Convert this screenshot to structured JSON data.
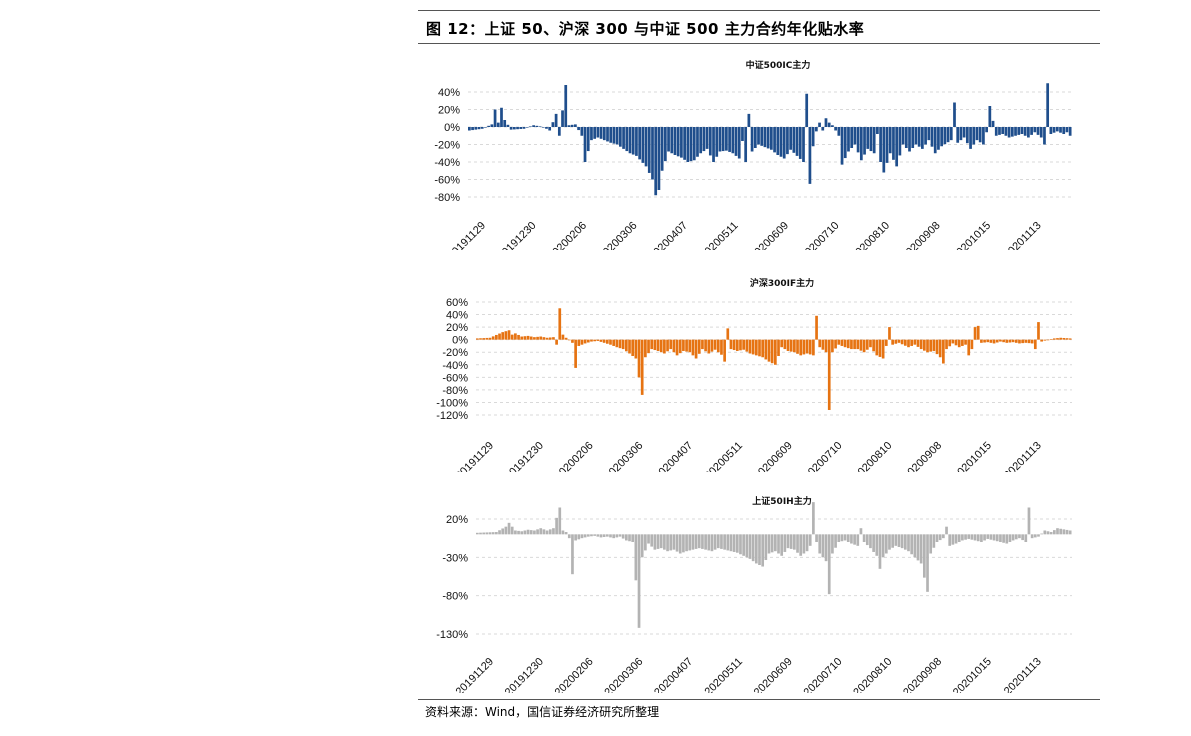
{
  "figure": {
    "title": "图 12：上证 50、沪深 300 与中证 500 主力合约年化贴水率",
    "source": "资料来源：Wind，国信证券经济研究所整理"
  },
  "chart_data": [
    {
      "type": "bar",
      "title": "中证500IC主力",
      "color": "#1f4e8c",
      "x_tick_labels": [
        "20191129",
        "20191230",
        "20200206",
        "20200306",
        "20200407",
        "20200511",
        "20200609",
        "20200710",
        "20200810",
        "20200908",
        "20201015",
        "20201113"
      ],
      "y_tick_labels": [
        "40%",
        "20%",
        "0%",
        "-20%",
        "-40%",
        "-60%",
        "-80%"
      ],
      "ylim": [
        -80,
        50
      ],
      "grid": true,
      "series_anchors": [
        [
          0,
          -4
        ],
        [
          4,
          -2
        ],
        [
          7,
          3
        ],
        [
          8,
          20
        ],
        [
          9,
          5
        ],
        [
          10,
          22
        ],
        [
          11,
          8
        ],
        [
          13,
          -3
        ],
        [
          17,
          -2
        ],
        [
          20,
          2
        ],
        [
          23,
          0
        ],
        [
          25,
          -4
        ],
        [
          27,
          15
        ],
        [
          28,
          -10
        ],
        [
          30,
          48
        ],
        [
          31,
          2
        ],
        [
          33,
          3
        ],
        [
          35,
          -10
        ],
        [
          36,
          -40
        ],
        [
          38,
          -15
        ],
        [
          40,
          -12
        ],
        [
          44,
          -18
        ],
        [
          46,
          -20
        ],
        [
          48,
          -25
        ],
        [
          50,
          -30
        ],
        [
          52,
          -33
        ],
        [
          55,
          -45
        ],
        [
          57,
          -60
        ],
        [
          58,
          -78
        ],
        [
          59,
          -72
        ],
        [
          60,
          -50
        ],
        [
          62,
          -28
        ],
        [
          64,
          -32
        ],
        [
          66,
          -35
        ],
        [
          68,
          -40
        ],
        [
          70,
          -38
        ],
        [
          72,
          -30
        ],
        [
          74,
          -25
        ],
        [
          76,
          -40
        ],
        [
          78,
          -28
        ],
        [
          80,
          -27
        ],
        [
          82,
          -30
        ],
        [
          84,
          -36
        ],
        [
          85,
          -16
        ],
        [
          86,
          -40
        ],
        [
          87,
          15
        ],
        [
          88,
          -28
        ],
        [
          90,
          -20
        ],
        [
          94,
          -26
        ],
        [
          96,
          -32
        ],
        [
          98,
          -36
        ],
        [
          100,
          -26
        ],
        [
          104,
          -40
        ],
        [
          105,
          38
        ],
        [
          106,
          -65
        ],
        [
          107,
          -22
        ],
        [
          108,
          -5
        ],
        [
          109,
          5
        ],
        [
          110,
          -4
        ],
        [
          111,
          10
        ],
        [
          112,
          5
        ],
        [
          113,
          2
        ],
        [
          115,
          -10
        ],
        [
          116,
          -43
        ],
        [
          118,
          -28
        ],
        [
          120,
          -20
        ],
        [
          122,
          -38
        ],
        [
          124,
          -25
        ],
        [
          126,
          -30
        ],
        [
          127,
          -8
        ],
        [
          128,
          -40
        ],
        [
          129,
          -52
        ],
        [
          131,
          -30
        ],
        [
          133,
          -45
        ],
        [
          135,
          -20
        ],
        [
          137,
          -28
        ],
        [
          139,
          -20
        ],
        [
          141,
          -25
        ],
        [
          143,
          -15
        ],
        [
          145,
          -30
        ],
        [
          147,
          -22
        ],
        [
          150,
          -15
        ],
        [
          151,
          28
        ],
        [
          152,
          -18
        ],
        [
          154,
          -12
        ],
        [
          156,
          -25
        ],
        [
          158,
          -15
        ],
        [
          160,
          -20
        ],
        [
          161,
          -6
        ],
        [
          162,
          24
        ],
        [
          164,
          -10
        ],
        [
          166,
          -8
        ],
        [
          168,
          -12
        ],
        [
          170,
          -10
        ],
        [
          172,
          -8
        ],
        [
          174,
          -12
        ],
        [
          176,
          -6
        ],
        [
          178,
          -12
        ],
        [
          179,
          -20
        ],
        [
          180,
          50
        ],
        [
          181,
          -8
        ],
        [
          183,
          -5
        ],
        [
          185,
          -8
        ],
        [
          186,
          -6
        ],
        [
          187,
          -10
        ]
      ]
    },
    {
      "type": "bar",
      "title": "沪深300IF主力",
      "color": "#e67312",
      "x_tick_labels": [
        "20191129",
        "20191230",
        "20200206",
        "20200306",
        "20200407",
        "20200511",
        "20200609",
        "20200710",
        "20200810",
        "20200908",
        "20201015",
        "20201113"
      ],
      "y_tick_labels": [
        "60%",
        "40%",
        "20%",
        "0%",
        "-20%",
        "-40%",
        "-60%",
        "-80%",
        "-100%",
        "-120%"
      ],
      "ylim": [
        -120,
        60
      ],
      "grid": true,
      "series_anchors": [
        [
          0,
          2
        ],
        [
          4,
          3
        ],
        [
          8,
          12
        ],
        [
          10,
          15
        ],
        [
          11,
          8
        ],
        [
          12,
          10
        ],
        [
          14,
          5
        ],
        [
          16,
          6
        ],
        [
          18,
          4
        ],
        [
          20,
          5
        ],
        [
          22,
          3
        ],
        [
          24,
          4
        ],
        [
          25,
          -8
        ],
        [
          26,
          50
        ],
        [
          27,
          8
        ],
        [
          28,
          3
        ],
        [
          30,
          -5
        ],
        [
          31,
          -45
        ],
        [
          32,
          -10
        ],
        [
          34,
          -6
        ],
        [
          36,
          -3
        ],
        [
          38,
          -2
        ],
        [
          40,
          -5
        ],
        [
          42,
          -8
        ],
        [
          44,
          -12
        ],
        [
          46,
          -15
        ],
        [
          48,
          -22
        ],
        [
          50,
          -30
        ],
        [
          51,
          -60
        ],
        [
          52,
          -88
        ],
        [
          53,
          -28
        ],
        [
          55,
          -15
        ],
        [
          57,
          -18
        ],
        [
          59,
          -22
        ],
        [
          61,
          -15
        ],
        [
          63,
          -25
        ],
        [
          65,
          -18
        ],
        [
          67,
          -20
        ],
        [
          69,
          -30
        ],
        [
          71,
          -15
        ],
        [
          73,
          -22
        ],
        [
          75,
          -16
        ],
        [
          77,
          -24
        ],
        [
          78,
          -35
        ],
        [
          79,
          18
        ],
        [
          80,
          -15
        ],
        [
          82,
          -18
        ],
        [
          84,
          -16
        ],
        [
          86,
          -22
        ],
        [
          88,
          -25
        ],
        [
          90,
          -28
        ],
        [
          92,
          -35
        ],
        [
          94,
          -40
        ],
        [
          96,
          -12
        ],
        [
          98,
          -18
        ],
        [
          100,
          -20
        ],
        [
          102,
          -25
        ],
        [
          104,
          -22
        ],
        [
          106,
          -25
        ],
        [
          107,
          38
        ],
        [
          108,
          -12
        ],
        [
          110,
          -20
        ],
        [
          111,
          -112
        ],
        [
          112,
          -20
        ],
        [
          114,
          -8
        ],
        [
          116,
          -12
        ],
        [
          118,
          -15
        ],
        [
          120,
          -15
        ],
        [
          122,
          -20
        ],
        [
          124,
          -12
        ],
        [
          126,
          -25
        ],
        [
          128,
          -30
        ],
        [
          129,
          -10
        ],
        [
          130,
          20
        ],
        [
          131,
          -8
        ],
        [
          133,
          -5
        ],
        [
          136,
          -12
        ],
        [
          138,
          -8
        ],
        [
          140,
          -15
        ],
        [
          142,
          -20
        ],
        [
          144,
          -18
        ],
        [
          146,
          -28
        ],
        [
          147,
          -38
        ],
        [
          148,
          -15
        ],
        [
          150,
          -6
        ],
        [
          152,
          -12
        ],
        [
          154,
          -8
        ],
        [
          155,
          -25
        ],
        [
          156,
          -15
        ],
        [
          157,
          20
        ],
        [
          158,
          22
        ],
        [
          159,
          -5
        ],
        [
          161,
          -4
        ],
        [
          163,
          -6
        ],
        [
          165,
          -3
        ],
        [
          167,
          -5
        ],
        [
          169,
          -4
        ],
        [
          171,
          -6
        ],
        [
          173,
          -5
        ],
        [
          175,
          -6
        ],
        [
          176,
          -15
        ],
        [
          177,
          28
        ],
        [
          178,
          -3
        ],
        [
          180,
          0
        ],
        [
          182,
          2
        ],
        [
          184,
          3
        ],
        [
          187,
          2
        ]
      ]
    },
    {
      "type": "bar",
      "title": "上证50IH主力",
      "color": "#b3b3b3",
      "x_tick_labels": [
        "20191129",
        "20191230",
        "20200206",
        "20200306",
        "20200407",
        "20200511",
        "20200609",
        "20200710",
        "20200810",
        "20200908",
        "20201015",
        "20201113"
      ],
      "y_tick_labels": [
        "20%",
        "-30%",
        "-80%",
        "-130%"
      ],
      "ylim": [
        -130,
        45
      ],
      "grid": true,
      "series_anchors": [
        [
          0,
          2
        ],
        [
          6,
          3
        ],
        [
          9,
          10
        ],
        [
          10,
          15
        ],
        [
          12,
          5
        ],
        [
          14,
          4
        ],
        [
          16,
          6
        ],
        [
          18,
          5
        ],
        [
          20,
          8
        ],
        [
          22,
          5
        ],
        [
          24,
          8
        ],
        [
          26,
          35
        ],
        [
          27,
          5
        ],
        [
          28,
          3
        ],
        [
          29,
          -5
        ],
        [
          30,
          -52
        ],
        [
          31,
          -8
        ],
        [
          33,
          -5
        ],
        [
          35,
          -3
        ],
        [
          37,
          -2
        ],
        [
          39,
          -4
        ],
        [
          41,
          -3
        ],
        [
          43,
          -5
        ],
        [
          45,
          -3
        ],
        [
          47,
          -8
        ],
        [
          49,
          -10
        ],
        [
          50,
          -60
        ],
        [
          51,
          -122
        ],
        [
          52,
          -30
        ],
        [
          54,
          -12
        ],
        [
          56,
          -20
        ],
        [
          58,
          -18
        ],
        [
          60,
          -22
        ],
        [
          62,
          -20
        ],
        [
          64,
          -25
        ],
        [
          66,
          -22
        ],
        [
          68,
          -20
        ],
        [
          70,
          -18
        ],
        [
          72,
          -20
        ],
        [
          74,
          -22
        ],
        [
          76,
          -18
        ],
        [
          78,
          -20
        ],
        [
          80,
          -22
        ],
        [
          82,
          -24
        ],
        [
          84,
          -28
        ],
        [
          86,
          -32
        ],
        [
          88,
          -38
        ],
        [
          90,
          -42
        ],
        [
          92,
          -25
        ],
        [
          94,
          -22
        ],
        [
          96,
          -28
        ],
        [
          98,
          -18
        ],
        [
          100,
          -20
        ],
        [
          102,
          -28
        ],
        [
          104,
          -22
        ],
        [
          105,
          -15
        ],
        [
          106,
          42
        ],
        [
          107,
          -10
        ],
        [
          108,
          -25
        ],
        [
          109,
          -30
        ],
        [
          110,
          -35
        ],
        [
          111,
          -78
        ],
        [
          112,
          -25
        ],
        [
          114,
          -10
        ],
        [
          116,
          -8
        ],
        [
          118,
          -12
        ],
        [
          120,
          -15
        ],
        [
          121,
          8
        ],
        [
          122,
          -10
        ],
        [
          124,
          -18
        ],
        [
          126,
          -28
        ],
        [
          127,
          -45
        ],
        [
          128,
          -30
        ],
        [
          130,
          -20
        ],
        [
          132,
          -15
        ],
        [
          134,
          -18
        ],
        [
          136,
          -22
        ],
        [
          138,
          -30
        ],
        [
          140,
          -38
        ],
        [
          142,
          -75
        ],
        [
          143,
          -25
        ],
        [
          145,
          -10
        ],
        [
          147,
          -5
        ],
        [
          148,
          10
        ],
        [
          149,
          -15
        ],
        [
          151,
          -12
        ],
        [
          153,
          -8
        ],
        [
          155,
          -6
        ],
        [
          157,
          -8
        ],
        [
          159,
          -10
        ],
        [
          161,
          -6
        ],
        [
          163,
          -8
        ],
        [
          165,
          -10
        ],
        [
          167,
          -12
        ],
        [
          169,
          -8
        ],
        [
          171,
          -5
        ],
        [
          173,
          -10
        ],
        [
          174,
          35
        ],
        [
          175,
          -5
        ],
        [
          177,
          -3
        ],
        [
          179,
          5
        ],
        [
          181,
          3
        ],
        [
          183,
          8
        ],
        [
          187,
          5
        ]
      ]
    }
  ]
}
